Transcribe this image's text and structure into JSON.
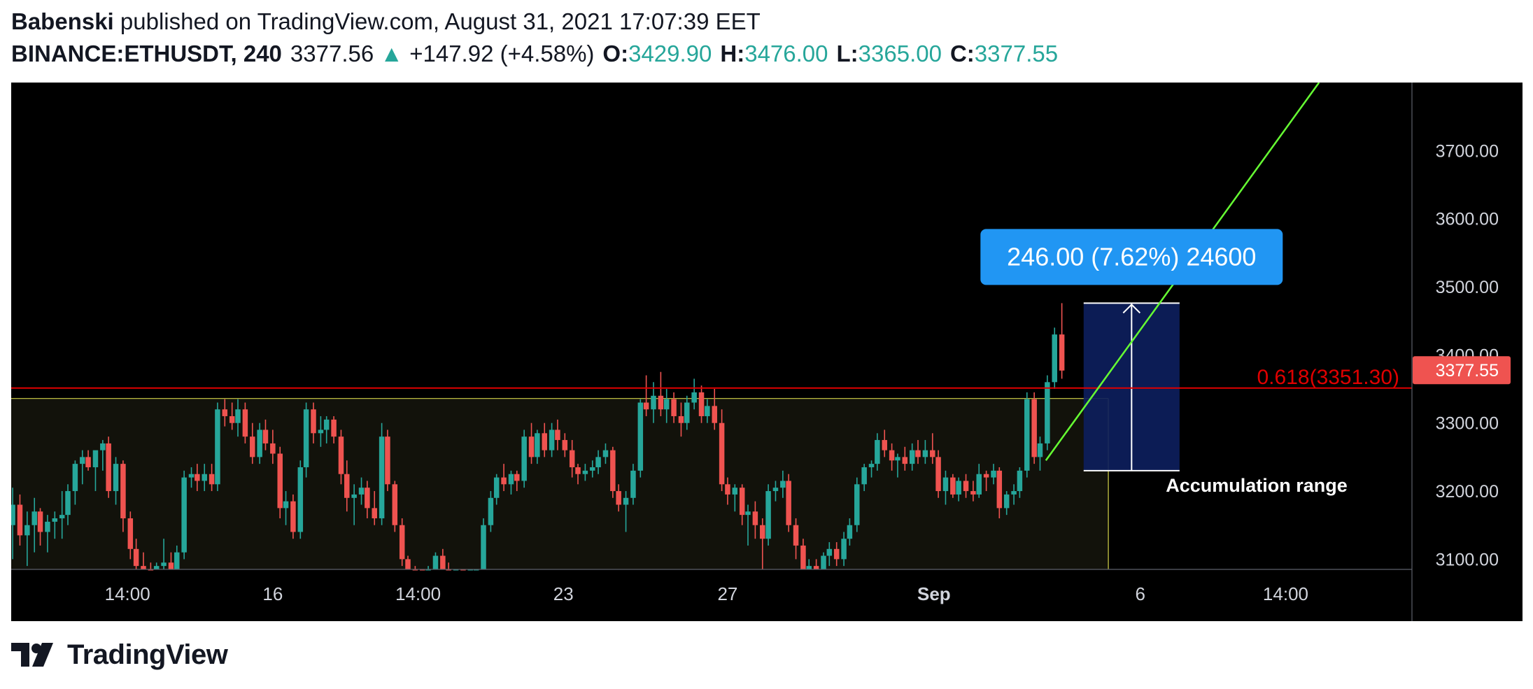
{
  "header": {
    "author": "Babenski",
    "published_text": "published on TradingView.com, August 31, 2021 17:07:39 EET",
    "symbol": "BINANCE:ETHUSDT, 240",
    "last_price": "3377.56",
    "up_arrow": "▲",
    "change": "+147.92 (+4.58%)",
    "open_label": "O:",
    "open": "3429.90",
    "high_label": "H:",
    "high": "3476.00",
    "low_label": "L:",
    "low": "3365.00",
    "close_label": "C:",
    "close": "3377.55"
  },
  "branding": {
    "name": "TradingView",
    "logo_icon": "tradingview-logo-icon"
  },
  "colors": {
    "up": "#26a69a",
    "down": "#ef5350",
    "chart_bg": "#000000",
    "range_fill": "#12120b",
    "range_border": "#d4d44a",
    "fib_line": "#e00000",
    "trend_line": "#66ff33",
    "projection_fill": "#0d1e5c",
    "measure_label_bg": "#2196f3",
    "price_label_bg": "#ef5350"
  },
  "chart_data": {
    "type": "candlestick",
    "symbol": "BINANCE:ETHUSDT",
    "interval": "240",
    "y_ticks": [
      3100,
      3200,
      3300,
      3400,
      3500,
      3600,
      3700
    ],
    "y_tick_labels": [
      "3100.00",
      "3200.00",
      "3300.00",
      "3400.00",
      "3500.00",
      "3600.00",
      "3700.00"
    ],
    "ylim": [
      3085,
      3800
    ],
    "x_tick_labels": [
      {
        "label": "14:00",
        "x": 18,
        "bold": false
      },
      {
        "label": "16",
        "x": 28,
        "bold": false
      },
      {
        "label": "14:00",
        "x": 38,
        "bold": false
      },
      {
        "label": "23",
        "x": 48,
        "bold": false
      },
      {
        "label": "27",
        "x": 59.3,
        "bold": false
      },
      {
        "label": "Sep",
        "x": 73.5,
        "bold": true
      },
      {
        "label": "6",
        "x": 87.7,
        "bold": false
      },
      {
        "label": "14:00",
        "x": 97.7,
        "bold": false
      }
    ],
    "xlim": [
      10,
      114
    ],
    "candles": [
      {
        "x": 10.1,
        "o": 3150,
        "h": 3205,
        "l": 3100,
        "c": 3180
      },
      {
        "x": 10.6,
        "o": 3180,
        "h": 3195,
        "l": 3120,
        "c": 3135
      },
      {
        "x": 11.1,
        "o": 3135,
        "h": 3170,
        "l": 3090,
        "c": 3150
      },
      {
        "x": 11.6,
        "o": 3150,
        "h": 3190,
        "l": 3110,
        "c": 3170
      },
      {
        "x": 12.0,
        "o": 3170,
        "h": 3175,
        "l": 3120,
        "c": 3140
      },
      {
        "x": 12.5,
        "o": 3140,
        "h": 3165,
        "l": 3110,
        "c": 3155
      },
      {
        "x": 13.0,
        "o": 3155,
        "h": 3170,
        "l": 3130,
        "c": 3160
      },
      {
        "x": 13.5,
        "o": 3160,
        "h": 3200,
        "l": 3130,
        "c": 3165
      },
      {
        "x": 13.9,
        "o": 3165,
        "h": 3210,
        "l": 3150,
        "c": 3200
      },
      {
        "x": 14.4,
        "o": 3200,
        "h": 3245,
        "l": 3180,
        "c": 3240
      },
      {
        "x": 14.9,
        "o": 3240,
        "h": 3260,
        "l": 3210,
        "c": 3250
      },
      {
        "x": 15.3,
        "o": 3250,
        "h": 3260,
        "l": 3230,
        "c": 3235
      },
      {
        "x": 15.8,
        "o": 3235,
        "h": 3255,
        "l": 3200,
        "c": 3260
      },
      {
        "x": 16.3,
        "o": 3260,
        "h": 3275,
        "l": 3230,
        "c": 3270
      },
      {
        "x": 16.7,
        "o": 3270,
        "h": 3280,
        "l": 3190,
        "c": 3200
      },
      {
        "x": 17.2,
        "o": 3200,
        "h": 3250,
        "l": 3180,
        "c": 3240
      },
      {
        "x": 17.7,
        "o": 3240,
        "h": 3245,
        "l": 3140,
        "c": 3160
      },
      {
        "x": 18.2,
        "o": 3160,
        "h": 3170,
        "l": 3100,
        "c": 3115
      },
      {
        "x": 18.6,
        "o": 3115,
        "h": 3130,
        "l": 3085,
        "c": 3090
      },
      {
        "x": 19.1,
        "o": 3090,
        "h": 3110,
        "l": 3070,
        "c": 3085
      },
      {
        "x": 19.6,
        "o": 3085,
        "h": 3095,
        "l": 3060,
        "c": 3070
      },
      {
        "x": 20.0,
        "o": 3070,
        "h": 3095,
        "l": 3060,
        "c": 3090
      },
      {
        "x": 20.5,
        "o": 3090,
        "h": 3130,
        "l": 3080,
        "c": 3095
      },
      {
        "x": 21.0,
        "o": 3095,
        "h": 3110,
        "l": 3070,
        "c": 3080
      },
      {
        "x": 21.4,
        "o": 3080,
        "h": 3120,
        "l": 3070,
        "c": 3110
      },
      {
        "x": 21.9,
        "o": 3110,
        "h": 3230,
        "l": 3100,
        "c": 3220
      },
      {
        "x": 22.4,
        "o": 3220,
        "h": 3235,
        "l": 3205,
        "c": 3225
      },
      {
        "x": 22.8,
        "o": 3225,
        "h": 3240,
        "l": 3200,
        "c": 3215
      },
      {
        "x": 23.3,
        "o": 3215,
        "h": 3240,
        "l": 3200,
        "c": 3225
      },
      {
        "x": 23.8,
        "o": 3225,
        "h": 3240,
        "l": 3200,
        "c": 3210
      },
      {
        "x": 24.2,
        "o": 3210,
        "h": 3330,
        "l": 3200,
        "c": 3320
      },
      {
        "x": 24.7,
        "o": 3320,
        "h": 3335,
        "l": 3295,
        "c": 3310
      },
      {
        "x": 25.2,
        "o": 3310,
        "h": 3330,
        "l": 3290,
        "c": 3300
      },
      {
        "x": 25.6,
        "o": 3300,
        "h": 3335,
        "l": 3280,
        "c": 3320
      },
      {
        "x": 26.1,
        "o": 3320,
        "h": 3330,
        "l": 3270,
        "c": 3280
      },
      {
        "x": 26.6,
        "o": 3280,
        "h": 3300,
        "l": 3240,
        "c": 3250
      },
      {
        "x": 27.1,
        "o": 3250,
        "h": 3300,
        "l": 3240,
        "c": 3290
      },
      {
        "x": 27.5,
        "o": 3290,
        "h": 3305,
        "l": 3260,
        "c": 3270
      },
      {
        "x": 28.0,
        "o": 3270,
        "h": 3290,
        "l": 3240,
        "c": 3255
      },
      {
        "x": 28.5,
        "o": 3255,
        "h": 3265,
        "l": 3160,
        "c": 3175
      },
      {
        "x": 28.9,
        "o": 3175,
        "h": 3200,
        "l": 3150,
        "c": 3185
      },
      {
        "x": 29.4,
        "o": 3185,
        "h": 3195,
        "l": 3130,
        "c": 3140
      },
      {
        "x": 29.9,
        "o": 3140,
        "h": 3245,
        "l": 3130,
        "c": 3235
      },
      {
        "x": 30.3,
        "o": 3235,
        "h": 3330,
        "l": 3220,
        "c": 3320
      },
      {
        "x": 30.8,
        "o": 3320,
        "h": 3330,
        "l": 3270,
        "c": 3285
      },
      {
        "x": 31.3,
        "o": 3285,
        "h": 3310,
        "l": 3265,
        "c": 3290
      },
      {
        "x": 31.7,
        "o": 3290,
        "h": 3310,
        "l": 3270,
        "c": 3305
      },
      {
        "x": 32.2,
        "o": 3305,
        "h": 3310,
        "l": 3270,
        "c": 3280
      },
      {
        "x": 32.7,
        "o": 3280,
        "h": 3290,
        "l": 3210,
        "c": 3225
      },
      {
        "x": 33.1,
        "o": 3225,
        "h": 3245,
        "l": 3170,
        "c": 3190
      },
      {
        "x": 33.6,
        "o": 3190,
        "h": 3210,
        "l": 3150,
        "c": 3195
      },
      {
        "x": 34.1,
        "o": 3195,
        "h": 3220,
        "l": 3180,
        "c": 3205
      },
      {
        "x": 34.5,
        "o": 3205,
        "h": 3215,
        "l": 3160,
        "c": 3175
      },
      {
        "x": 35.0,
        "o": 3175,
        "h": 3200,
        "l": 3150,
        "c": 3160
      },
      {
        "x": 35.5,
        "o": 3160,
        "h": 3300,
        "l": 3150,
        "c": 3280
      },
      {
        "x": 35.9,
        "o": 3280,
        "h": 3290,
        "l": 3200,
        "c": 3210
      },
      {
        "x": 36.4,
        "o": 3210,
        "h": 3215,
        "l": 3140,
        "c": 3150
      },
      {
        "x": 36.9,
        "o": 3150,
        "h": 3160,
        "l": 3090,
        "c": 3100
      },
      {
        "x": 37.3,
        "o": 3100,
        "h": 3105,
        "l": 3060,
        "c": 3070
      },
      {
        "x": 37.8,
        "o": 3070,
        "h": 3090,
        "l": 3055,
        "c": 3065
      },
      {
        "x": 38.3,
        "o": 3065,
        "h": 3080,
        "l": 3050,
        "c": 3060
      },
      {
        "x": 38.7,
        "o": 3060,
        "h": 3090,
        "l": 3040,
        "c": 3080
      },
      {
        "x": 39.2,
        "o": 3080,
        "h": 3110,
        "l": 3060,
        "c": 3105
      },
      {
        "x": 39.7,
        "o": 3105,
        "h": 3115,
        "l": 3060,
        "c": 3080
      },
      {
        "x": 40.1,
        "o": 3080,
        "h": 3095,
        "l": 3050,
        "c": 3060
      },
      {
        "x": 40.6,
        "o": 3060,
        "h": 3080,
        "l": 3040,
        "c": 3070
      },
      {
        "x": 41.1,
        "o": 3070,
        "h": 3085,
        "l": 3045,
        "c": 3055
      },
      {
        "x": 41.6,
        "o": 3055,
        "h": 3070,
        "l": 3040,
        "c": 3060
      },
      {
        "x": 42.0,
        "o": 3060,
        "h": 3080,
        "l": 3045,
        "c": 3075
      },
      {
        "x": 42.5,
        "o": 3075,
        "h": 3160,
        "l": 3060,
        "c": 3150
      },
      {
        "x": 43.0,
        "o": 3150,
        "h": 3200,
        "l": 3140,
        "c": 3190
      },
      {
        "x": 43.4,
        "o": 3190,
        "h": 3225,
        "l": 3180,
        "c": 3220
      },
      {
        "x": 43.9,
        "o": 3220,
        "h": 3240,
        "l": 3200,
        "c": 3210
      },
      {
        "x": 44.4,
        "o": 3210,
        "h": 3230,
        "l": 3195,
        "c": 3225
      },
      {
        "x": 44.8,
        "o": 3225,
        "h": 3230,
        "l": 3200,
        "c": 3215
      },
      {
        "x": 45.3,
        "o": 3215,
        "h": 3290,
        "l": 3205,
        "c": 3280
      },
      {
        "x": 45.8,
        "o": 3280,
        "h": 3300,
        "l": 3240,
        "c": 3250
      },
      {
        "x": 46.2,
        "o": 3250,
        "h": 3290,
        "l": 3240,
        "c": 3285
      },
      {
        "x": 46.7,
        "o": 3285,
        "h": 3300,
        "l": 3250,
        "c": 3260
      },
      {
        "x": 47.2,
        "o": 3260,
        "h": 3300,
        "l": 3250,
        "c": 3290
      },
      {
        "x": 47.6,
        "o": 3290,
        "h": 3305,
        "l": 3260,
        "c": 3275
      },
      {
        "x": 48.1,
        "o": 3275,
        "h": 3285,
        "l": 3250,
        "c": 3260
      },
      {
        "x": 48.6,
        "o": 3260,
        "h": 3275,
        "l": 3220,
        "c": 3235
      },
      {
        "x": 49.0,
        "o": 3235,
        "h": 3240,
        "l": 3210,
        "c": 3225
      },
      {
        "x": 49.5,
        "o": 3225,
        "h": 3240,
        "l": 3215,
        "c": 3230
      },
      {
        "x": 50.0,
        "o": 3230,
        "h": 3245,
        "l": 3220,
        "c": 3235
      },
      {
        "x": 50.4,
        "o": 3235,
        "h": 3260,
        "l": 3225,
        "c": 3250
      },
      {
        "x": 50.9,
        "o": 3250,
        "h": 3270,
        "l": 3240,
        "c": 3260
      },
      {
        "x": 51.4,
        "o": 3260,
        "h": 3265,
        "l": 3190,
        "c": 3200
      },
      {
        "x": 51.8,
        "o": 3200,
        "h": 3210,
        "l": 3170,
        "c": 3180
      },
      {
        "x": 52.3,
        "o": 3180,
        "h": 3200,
        "l": 3140,
        "c": 3190
      },
      {
        "x": 52.8,
        "o": 3190,
        "h": 3240,
        "l": 3180,
        "c": 3230
      },
      {
        "x": 53.3,
        "o": 3230,
        "h": 3335,
        "l": 3220,
        "c": 3330
      },
      {
        "x": 53.7,
        "o": 3330,
        "h": 3370,
        "l": 3310,
        "c": 3320
      },
      {
        "x": 54.2,
        "o": 3320,
        "h": 3360,
        "l": 3300,
        "c": 3340
      },
      {
        "x": 54.7,
        "o": 3340,
        "h": 3375,
        "l": 3310,
        "c": 3320
      },
      {
        "x": 55.1,
        "o": 3320,
        "h": 3350,
        "l": 3300,
        "c": 3335
      },
      {
        "x": 55.6,
        "o": 3335,
        "h": 3345,
        "l": 3300,
        "c": 3310
      },
      {
        "x": 56.1,
        "o": 3310,
        "h": 3330,
        "l": 3280,
        "c": 3300
      },
      {
        "x": 56.5,
        "o": 3300,
        "h": 3340,
        "l": 3290,
        "c": 3330
      },
      {
        "x": 57.0,
        "o": 3330,
        "h": 3365,
        "l": 3320,
        "c": 3345
      },
      {
        "x": 57.5,
        "o": 3345,
        "h": 3355,
        "l": 3300,
        "c": 3310
      },
      {
        "x": 57.9,
        "o": 3310,
        "h": 3335,
        "l": 3300,
        "c": 3325
      },
      {
        "x": 58.4,
        "o": 3325,
        "h": 3350,
        "l": 3290,
        "c": 3300
      },
      {
        "x": 58.9,
        "o": 3300,
        "h": 3320,
        "l": 3200,
        "c": 3210
      },
      {
        "x": 59.3,
        "o": 3210,
        "h": 3220,
        "l": 3180,
        "c": 3195
      },
      {
        "x": 59.8,
        "o": 3195,
        "h": 3210,
        "l": 3170,
        "c": 3205
      },
      {
        "x": 60.3,
        "o": 3205,
        "h": 3210,
        "l": 3150,
        "c": 3165
      },
      {
        "x": 60.7,
        "o": 3165,
        "h": 3180,
        "l": 3120,
        "c": 3170
      },
      {
        "x": 61.2,
        "o": 3170,
        "h": 3185,
        "l": 3130,
        "c": 3150
      },
      {
        "x": 61.7,
        "o": 3150,
        "h": 3160,
        "l": 3080,
        "c": 3130
      },
      {
        "x": 62.1,
        "o": 3130,
        "h": 3210,
        "l": 3120,
        "c": 3200
      },
      {
        "x": 62.6,
        "o": 3200,
        "h": 3215,
        "l": 3185,
        "c": 3205
      },
      {
        "x": 63.1,
        "o": 3205,
        "h": 3230,
        "l": 3190,
        "c": 3215
      },
      {
        "x": 63.5,
        "o": 3215,
        "h": 3225,
        "l": 3140,
        "c": 3150
      },
      {
        "x": 64.0,
        "o": 3150,
        "h": 3160,
        "l": 3100,
        "c": 3120
      },
      {
        "x": 64.5,
        "o": 3120,
        "h": 3130,
        "l": 3070,
        "c": 3080
      },
      {
        "x": 64.9,
        "o": 3080,
        "h": 3100,
        "l": 3060,
        "c": 3090
      },
      {
        "x": 65.4,
        "o": 3090,
        "h": 3100,
        "l": 3065,
        "c": 3075
      },
      {
        "x": 65.9,
        "o": 3075,
        "h": 3110,
        "l": 3065,
        "c": 3105
      },
      {
        "x": 66.3,
        "o": 3105,
        "h": 3125,
        "l": 3090,
        "c": 3115
      },
      {
        "x": 66.8,
        "o": 3115,
        "h": 3125,
        "l": 3090,
        "c": 3100
      },
      {
        "x": 67.3,
        "o": 3100,
        "h": 3140,
        "l": 3090,
        "c": 3130
      },
      {
        "x": 67.7,
        "o": 3130,
        "h": 3160,
        "l": 3120,
        "c": 3150
      },
      {
        "x": 68.2,
        "o": 3150,
        "h": 3220,
        "l": 3140,
        "c": 3210
      },
      {
        "x": 68.7,
        "o": 3210,
        "h": 3240,
        "l": 3200,
        "c": 3235
      },
      {
        "x": 69.2,
        "o": 3235,
        "h": 3245,
        "l": 3220,
        "c": 3240
      },
      {
        "x": 69.6,
        "o": 3240,
        "h": 3285,
        "l": 3230,
        "c": 3275
      },
      {
        "x": 70.1,
        "o": 3275,
        "h": 3290,
        "l": 3250,
        "c": 3260
      },
      {
        "x": 70.6,
        "o": 3260,
        "h": 3270,
        "l": 3230,
        "c": 3245
      },
      {
        "x": 71.0,
        "o": 3245,
        "h": 3255,
        "l": 3220,
        "c": 3250
      },
      {
        "x": 71.5,
        "o": 3250,
        "h": 3265,
        "l": 3230,
        "c": 3240
      },
      {
        "x": 72.0,
        "o": 3240,
        "h": 3270,
        "l": 3230,
        "c": 3260
      },
      {
        "x": 72.4,
        "o": 3260,
        "h": 3275,
        "l": 3240,
        "c": 3250
      },
      {
        "x": 72.9,
        "o": 3250,
        "h": 3275,
        "l": 3240,
        "c": 3260
      },
      {
        "x": 73.4,
        "o": 3260,
        "h": 3285,
        "l": 3240,
        "c": 3250
      },
      {
        "x": 73.8,
        "o": 3250,
        "h": 3260,
        "l": 3190,
        "c": 3200
      },
      {
        "x": 74.3,
        "o": 3200,
        "h": 3230,
        "l": 3180,
        "c": 3220
      },
      {
        "x": 74.8,
        "o": 3220,
        "h": 3225,
        "l": 3190,
        "c": 3195
      },
      {
        "x": 75.2,
        "o": 3195,
        "h": 3220,
        "l": 3185,
        "c": 3215
      },
      {
        "x": 75.7,
        "o": 3215,
        "h": 3225,
        "l": 3190,
        "c": 3200
      },
      {
        "x": 76.2,
        "o": 3200,
        "h": 3215,
        "l": 3185,
        "c": 3195
      },
      {
        "x": 76.6,
        "o": 3195,
        "h": 3240,
        "l": 3190,
        "c": 3225
      },
      {
        "x": 77.1,
        "o": 3225,
        "h": 3230,
        "l": 3200,
        "c": 3220
      },
      {
        "x": 77.6,
        "o": 3220,
        "h": 3240,
        "l": 3210,
        "c": 3230
      },
      {
        "x": 78.0,
        "o": 3230,
        "h": 3235,
        "l": 3160,
        "c": 3175
      },
      {
        "x": 78.5,
        "o": 3175,
        "h": 3200,
        "l": 3165,
        "c": 3195
      },
      {
        "x": 79.0,
        "o": 3195,
        "h": 3210,
        "l": 3180,
        "c": 3200
      },
      {
        "x": 79.4,
        "o": 3200,
        "h": 3235,
        "l": 3190,
        "c": 3230
      },
      {
        "x": 79.9,
        "o": 3230,
        "h": 3345,
        "l": 3220,
        "c": 3335
      },
      {
        "x": 80.4,
        "o": 3335,
        "h": 3345,
        "l": 3240,
        "c": 3250
      },
      {
        "x": 80.8,
        "o": 3250,
        "h": 3280,
        "l": 3230,
        "c": 3270
      },
      {
        "x": 81.3,
        "o": 3270,
        "h": 3370,
        "l": 3260,
        "c": 3360
      },
      {
        "x": 81.8,
        "o": 3360,
        "h": 3440,
        "l": 3350,
        "c": 3430
      },
      {
        "x": 82.3,
        "o": 3430,
        "h": 3476,
        "l": 3365,
        "c": 3377
      }
    ],
    "lines": [
      {
        "name": "fib-0.618",
        "label": "0.618(3351.30)",
        "y": 3351.3
      },
      {
        "name": "trend-line",
        "from": {
          "x": 81.2,
          "y": 3245
        },
        "to": {
          "x": 100.0,
          "y": 3800
        }
      }
    ],
    "zones": [
      {
        "name": "accumulation-range",
        "label": "Accumulation range",
        "x_start": 10,
        "x_end": 85.5,
        "y_low": 3085,
        "y_high": 3336
      }
    ],
    "projection": {
      "x_start": 83.8,
      "x_end": 90.4,
      "y_low": 3230,
      "y_high": 3476,
      "label": "246.00 (7.62%) 24600"
    },
    "last_price_label": "3377.55",
    "last_price_value": 3377.55
  }
}
